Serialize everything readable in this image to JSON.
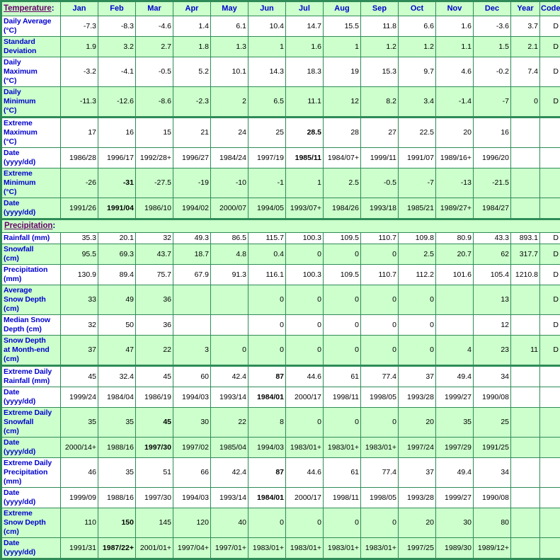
{
  "palette": {
    "border_green": "#2e8b57",
    "bg_light_green": "#ccffcc",
    "bg_white": "#ffffff",
    "label_blue": "#0000cc",
    "link_purple": "#660066",
    "colon_navy": "#000080",
    "value_black": "#000000"
  },
  "table": {
    "columns": [
      "Jan",
      "Feb",
      "Mar",
      "Apr",
      "May",
      "Jun",
      "Jul",
      "Aug",
      "Sep",
      "Oct",
      "Nov",
      "Dec",
      "Year",
      "Code"
    ],
    "sections": [
      {
        "link": "Temperature",
        "colon": ":",
        "rows": [
          {
            "label": "Daily Average\n(°C)",
            "shade": "white",
            "sep": false,
            "bold": [],
            "values": [
              "-7.3",
              "-8.3",
              "-4.6",
              "1.4",
              "6.1",
              "10.4",
              "14.7",
              "15.5",
              "11.8",
              "6.6",
              "1.6",
              "-3.6"
            ],
            "year": "3.7",
            "code": "D"
          },
          {
            "label": "Standard\nDeviation",
            "shade": "green",
            "sep": false,
            "bold": [],
            "values": [
              "1.9",
              "3.2",
              "2.7",
              "1.8",
              "1.3",
              "1",
              "1.6",
              "1",
              "1.2",
              "1.2",
              "1.1",
              "1.5"
            ],
            "year": "2.1",
            "code": "D"
          },
          {
            "label": "Daily\nMaximum\n(°C)",
            "shade": "white",
            "sep": false,
            "bold": [],
            "values": [
              "-3.2",
              "-4.1",
              "-0.5",
              "5.2",
              "10.1",
              "14.3",
              "18.3",
              "19",
              "15.3",
              "9.7",
              "4.6",
              "-0.2"
            ],
            "year": "7.4",
            "code": "D"
          },
          {
            "label": "Daily\nMinimum\n(°C)",
            "shade": "green",
            "sep": false,
            "bold": [],
            "values": [
              "-11.3",
              "-12.6",
              "-8.6",
              "-2.3",
              "2",
              "6.5",
              "11.1",
              "12",
              "8.2",
              "3.4",
              "-1.4",
              "-7"
            ],
            "year": "0",
            "code": "D"
          },
          {
            "label": "Extreme\nMaximum\n(°C)",
            "shade": "white",
            "sep": true,
            "bold": [
              6
            ],
            "values": [
              "17",
              "16",
              "15",
              "21",
              "24",
              "25",
              "28.5",
              "28",
              "27",
              "22.5",
              "20",
              "16"
            ],
            "year": "",
            "code": ""
          },
          {
            "label": "Date\n(yyyy/dd)",
            "shade": "white",
            "sep": false,
            "bold": [
              6
            ],
            "values": [
              "1986/28",
              "1996/17",
              "1992/28+",
              "1996/27",
              "1984/24",
              "1997/19",
              "1985/11",
              "1984/07+",
              "1999/11",
              "1991/07",
              "1989/16+",
              "1996/20"
            ],
            "year": "",
            "code": ""
          },
          {
            "label": "Extreme\nMinimum\n(°C)",
            "shade": "green",
            "sep": false,
            "bold": [
              1
            ],
            "values": [
              "-26",
              "-31",
              "-27.5",
              "-19",
              "-10",
              "-1",
              "1",
              "2.5",
              "-0.5",
              "-7",
              "-13",
              "-21.5"
            ],
            "year": "",
            "code": ""
          },
          {
            "label": "Date\n(yyyy/dd)",
            "shade": "green",
            "sep": false,
            "bold": [
              1
            ],
            "values": [
              "1991/26",
              "1991/04",
              "1986/10",
              "1994/02",
              "2000/07",
              "1994/05",
              "1993/07+",
              "1984/26",
              "1993/18",
              "1985/21",
              "1989/27+",
              "1984/27"
            ],
            "year": "",
            "code": ""
          }
        ]
      },
      {
        "link": "Precipitation",
        "colon": ":",
        "rows": [
          {
            "label": "Rainfall (mm)",
            "shade": "white",
            "sep": false,
            "bold": [],
            "values": [
              "35.3",
              "20.1",
              "32",
              "49.3",
              "86.5",
              "115.7",
              "100.3",
              "109.5",
              "110.7",
              "109.8",
              "80.9",
              "43.3"
            ],
            "year": "893.1",
            "code": "D"
          },
          {
            "label": "Snowfall\n(cm)",
            "shade": "green",
            "sep": false,
            "bold": [],
            "values": [
              "95.5",
              "69.3",
              "43.7",
              "18.7",
              "4.8",
              "0.4",
              "0",
              "0",
              "0",
              "2.5",
              "20.7",
              "62"
            ],
            "year": "317.7",
            "code": "D"
          },
          {
            "label": "Precipitation\n(mm)",
            "shade": "white",
            "sep": false,
            "bold": [],
            "values": [
              "130.9",
              "89.4",
              "75.7",
              "67.9",
              "91.3",
              "116.1",
              "100.3",
              "109.5",
              "110.7",
              "112.2",
              "101.6",
              "105.4"
            ],
            "year": "1210.8",
            "code": "D"
          },
          {
            "label": "Average\nSnow Depth\n(cm)",
            "shade": "green",
            "sep": false,
            "bold": [],
            "values": [
              "33",
              "49",
              "36",
              "",
              "",
              "0",
              "0",
              "0",
              "0",
              "0",
              "",
              "13"
            ],
            "year": "",
            "code": "D"
          },
          {
            "label": "Median Snow\nDepth (cm)",
            "shade": "white",
            "sep": false,
            "bold": [],
            "values": [
              "32",
              "50",
              "36",
              "",
              "",
              "0",
              "0",
              "0",
              "0",
              "0",
              "",
              "12"
            ],
            "year": "",
            "code": "D"
          },
          {
            "label": "Snow Depth\nat Month-end\n(cm)",
            "shade": "green",
            "sep": false,
            "bold": [],
            "values": [
              "37",
              "47",
              "22",
              "3",
              "0",
              "0",
              "0",
              "0",
              "0",
              "0",
              "4",
              "23"
            ],
            "year": "11",
            "code": "D"
          },
          {
            "label": "Extreme Daily\nRainfall (mm)",
            "shade": "white",
            "sep": true,
            "bold": [
              5
            ],
            "values": [
              "45",
              "32.4",
              "45",
              "60",
              "42.4",
              "87",
              "44.6",
              "61",
              "77.4",
              "37",
              "49.4",
              "34"
            ],
            "year": "",
            "code": ""
          },
          {
            "label": "Date\n(yyyy/dd)",
            "shade": "white",
            "sep": false,
            "bold": [
              5
            ],
            "values": [
              "1999/24",
              "1984/04",
              "1986/19",
              "1994/03",
              "1993/14",
              "1984/01",
              "2000/17",
              "1998/11",
              "1998/05",
              "1993/28",
              "1999/27",
              "1990/08"
            ],
            "year": "",
            "code": ""
          },
          {
            "label": "Extreme Daily\nSnowfall\n(cm)",
            "shade": "green",
            "sep": false,
            "bold": [
              2
            ],
            "values": [
              "35",
              "35",
              "45",
              "30",
              "22",
              "8",
              "0",
              "0",
              "0",
              "20",
              "35",
              "25"
            ],
            "year": "",
            "code": ""
          },
          {
            "label": "Date\n(yyyy/dd)",
            "shade": "green",
            "sep": false,
            "bold": [
              2
            ],
            "values": [
              "2000/14+",
              "1988/16",
              "1997/30",
              "1997/02",
              "1985/04",
              "1994/03",
              "1983/01+",
              "1983/01+",
              "1983/01+",
              "1997/24",
              "1997/29",
              "1991/25"
            ],
            "year": "",
            "code": ""
          },
          {
            "label": "Extreme Daily\nPrecipitation\n(mm)",
            "shade": "white",
            "sep": false,
            "bold": [
              5
            ],
            "values": [
              "46",
              "35",
              "51",
              "66",
              "42.4",
              "87",
              "44.6",
              "61",
              "77.4",
              "37",
              "49.4",
              "34"
            ],
            "year": "",
            "code": ""
          },
          {
            "label": "Date\n(yyyy/dd)",
            "shade": "white",
            "sep": false,
            "bold": [
              5
            ],
            "values": [
              "1999/09",
              "1988/16",
              "1997/30",
              "1994/03",
              "1993/14",
              "1984/01",
              "2000/17",
              "1998/11",
              "1998/05",
              "1993/28",
              "1999/27",
              "1990/08"
            ],
            "year": "",
            "code": ""
          },
          {
            "label": "Extreme\nSnow Depth\n(cm)",
            "shade": "green",
            "sep": false,
            "bold": [
              1
            ],
            "values": [
              "110",
              "150",
              "145",
              "120",
              "40",
              "0",
              "0",
              "0",
              "0",
              "20",
              "30",
              "80"
            ],
            "year": "",
            "code": ""
          },
          {
            "label": "Date\n(yyyy/dd)",
            "shade": "green",
            "sep": false,
            "bold": [
              1
            ],
            "values": [
              "1991/31",
              "1987/22+",
              "2001/01+",
              "1997/04+",
              "1997/01+",
              "1983/01+",
              "1983/01+",
              "1983/01+",
              "1983/01+",
              "1997/25",
              "1989/30",
              "1989/12+"
            ],
            "year": "",
            "code": ""
          }
        ]
      }
    ]
  }
}
